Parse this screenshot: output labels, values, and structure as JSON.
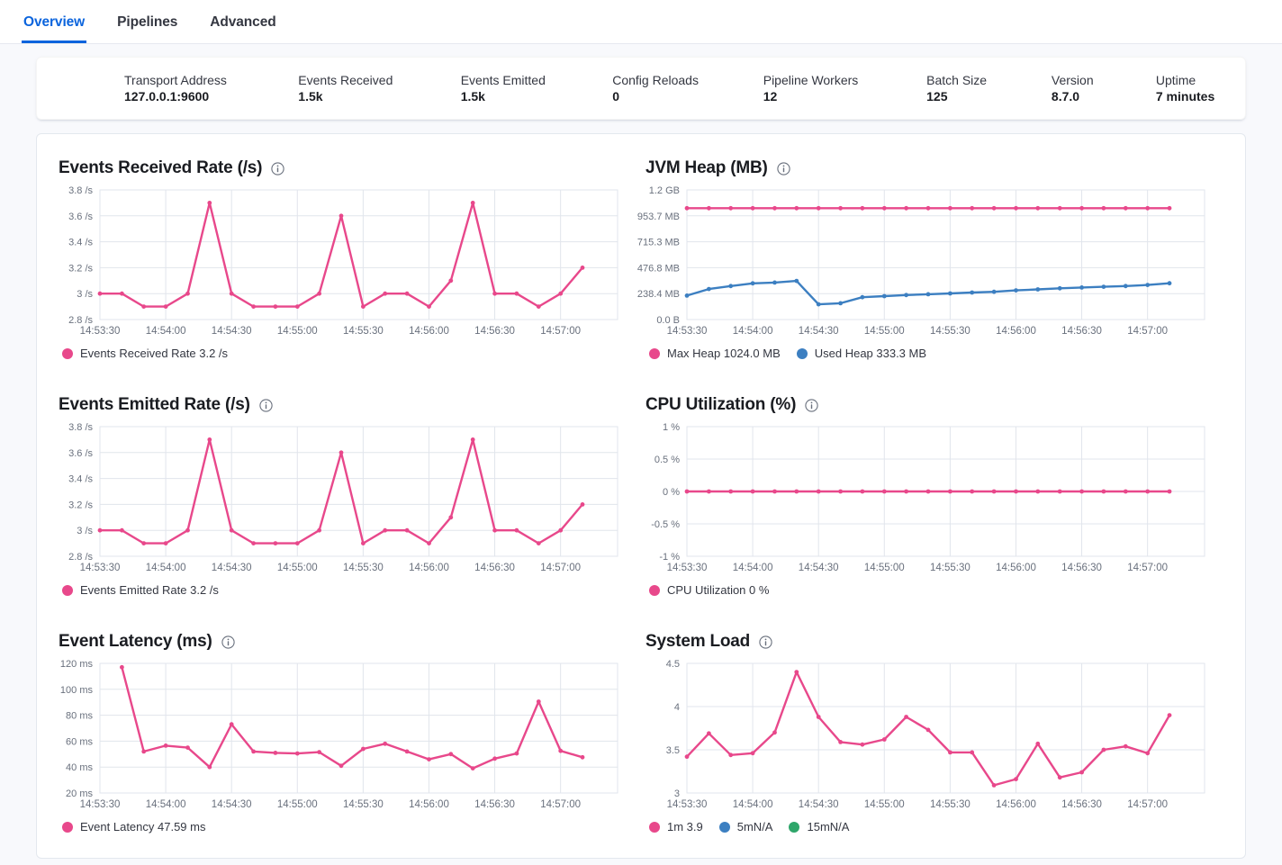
{
  "tabs": {
    "items": [
      {
        "label": "Overview",
        "active": true
      },
      {
        "label": "Pipelines",
        "active": false
      },
      {
        "label": "Advanced",
        "active": false
      }
    ]
  },
  "stats": {
    "items": [
      {
        "label": "Transport Address",
        "value": "127.0.0.1:9600"
      },
      {
        "label": "Events Received",
        "value": "1.5k"
      },
      {
        "label": "Events Emitted",
        "value": "1.5k"
      },
      {
        "label": "Config Reloads",
        "value": "0"
      },
      {
        "label": "Pipeline Workers",
        "value": "12"
      },
      {
        "label": "Batch Size",
        "value": "125"
      },
      {
        "label": "Version",
        "value": "8.7.0"
      },
      {
        "label": "Uptime",
        "value": "7 minutes"
      }
    ]
  },
  "theme": {
    "tab_accent": "#0b64dd",
    "pink": "#e8488b",
    "blue": "#3c7fc1",
    "green": "#2ea66a",
    "grid": "#e1e5ec",
    "tick_text": "#69707d"
  },
  "chart_data": [
    {
      "type": "line",
      "slug": "events-received-rate",
      "title": "Events Received Rate (/s)",
      "ylabel": "/s",
      "ylim": [
        2.8,
        3.8
      ],
      "yticks": [
        {
          "v": 2.8,
          "label": "2.8 /s"
        },
        {
          "v": 3.0,
          "label": "3 /s"
        },
        {
          "v": 3.2,
          "label": "3.2 /s"
        },
        {
          "v": 3.4,
          "label": "3.4 /s"
        },
        {
          "v": 3.6,
          "label": "3.6 /s"
        },
        {
          "v": 3.8,
          "label": "3.8 /s"
        }
      ],
      "xticks": [
        {
          "t": 0,
          "label": "14:53:30"
        },
        {
          "t": 30,
          "label": "14:54:00"
        },
        {
          "t": 60,
          "label": "14:54:30"
        },
        {
          "t": 90,
          "label": "14:55:00"
        },
        {
          "t": 120,
          "label": "14:55:30"
        },
        {
          "t": 150,
          "label": "14:56:00"
        },
        {
          "t": 180,
          "label": "14:56:30"
        },
        {
          "t": 210,
          "label": "14:57:00"
        }
      ],
      "t_domain": 236,
      "series": [
        {
          "name": "Events Received Rate",
          "color": "#e8488b",
          "t0": 0,
          "dt": 10,
          "values": [
            3,
            3,
            2.9,
            2.9,
            3,
            3.7,
            3,
            2.9,
            2.9,
            2.9,
            3,
            3.6,
            2.9,
            3,
            3,
            2.9,
            3.1,
            3.7,
            3,
            3,
            2.9,
            3,
            3.2
          ]
        }
      ],
      "legend": [
        {
          "color": "#e8488b",
          "label": "Events Received Rate 3.2 /s"
        }
      ]
    },
    {
      "type": "line",
      "slug": "jvm-heap",
      "title": "JVM Heap (MB)",
      "ylabel": "MB",
      "ylim": [
        0,
        1192.1
      ],
      "yticks": [
        {
          "v": 0,
          "label": "0.0 B"
        },
        {
          "v": 238.4,
          "label": "238.4 MB"
        },
        {
          "v": 476.8,
          "label": "476.8 MB"
        },
        {
          "v": 715.3,
          "label": "715.3 MB"
        },
        {
          "v": 953.7,
          "label": "953.7 MB"
        },
        {
          "v": 1192.1,
          "label": "1.2 GB"
        }
      ],
      "xticks": [
        {
          "t": 0,
          "label": "14:53:30"
        },
        {
          "t": 30,
          "label": "14:54:00"
        },
        {
          "t": 60,
          "label": "14:54:30"
        },
        {
          "t": 90,
          "label": "14:55:00"
        },
        {
          "t": 120,
          "label": "14:55:30"
        },
        {
          "t": 150,
          "label": "14:56:00"
        },
        {
          "t": 180,
          "label": "14:56:30"
        },
        {
          "t": 210,
          "label": "14:57:00"
        }
      ],
      "t_domain": 236,
      "series": [
        {
          "name": "Max Heap",
          "color": "#e8488b",
          "t0": 0,
          "dt": 10,
          "values": [
            1024,
            1024,
            1024,
            1024,
            1024,
            1024,
            1024,
            1024,
            1024,
            1024,
            1024,
            1024,
            1024,
            1024,
            1024,
            1024,
            1024,
            1024,
            1024,
            1024,
            1024,
            1024,
            1024
          ]
        },
        {
          "name": "Used Heap",
          "color": "#3c7fc1",
          "t0": 0,
          "dt": 10,
          "values": [
            220,
            281,
            308,
            333,
            340,
            355,
            140,
            150,
            205,
            215,
            225,
            233,
            240,
            248,
            255,
            268,
            277,
            287,
            295,
            301,
            308,
            318,
            333.3
          ]
        }
      ],
      "legend": [
        {
          "color": "#e8488b",
          "label": "Max Heap 1024.0 MB"
        },
        {
          "color": "#3c7fc1",
          "label": "Used Heap 333.3 MB"
        }
      ]
    },
    {
      "type": "line",
      "slug": "events-emitted-rate",
      "title": "Events Emitted Rate (/s)",
      "ylabel": "/s",
      "ylim": [
        2.8,
        3.8
      ],
      "yticks": [
        {
          "v": 2.8,
          "label": "2.8 /s"
        },
        {
          "v": 3.0,
          "label": "3 /s"
        },
        {
          "v": 3.2,
          "label": "3.2 /s"
        },
        {
          "v": 3.4,
          "label": "3.4 /s"
        },
        {
          "v": 3.6,
          "label": "3.6 /s"
        },
        {
          "v": 3.8,
          "label": "3.8 /s"
        }
      ],
      "xticks": [
        {
          "t": 0,
          "label": "14:53:30"
        },
        {
          "t": 30,
          "label": "14:54:00"
        },
        {
          "t": 60,
          "label": "14:54:30"
        },
        {
          "t": 90,
          "label": "14:55:00"
        },
        {
          "t": 120,
          "label": "14:55:30"
        },
        {
          "t": 150,
          "label": "14:56:00"
        },
        {
          "t": 180,
          "label": "14:56:30"
        },
        {
          "t": 210,
          "label": "14:57:00"
        }
      ],
      "t_domain": 236,
      "series": [
        {
          "name": "Events Emitted Rate",
          "color": "#e8488b",
          "t0": 0,
          "dt": 10,
          "values": [
            3,
            3,
            2.9,
            2.9,
            3,
            3.7,
            3,
            2.9,
            2.9,
            2.9,
            3,
            3.6,
            2.9,
            3,
            3,
            2.9,
            3.1,
            3.7,
            3,
            3,
            2.9,
            3,
            3.2
          ]
        }
      ],
      "legend": [
        {
          "color": "#e8488b",
          "label": "Events Emitted Rate 3.2 /s"
        }
      ]
    },
    {
      "type": "line",
      "slug": "cpu-utilization",
      "title": "CPU Utilization (%)",
      "ylabel": "%",
      "ylim": [
        -1,
        1
      ],
      "yticks": [
        {
          "v": -1,
          "label": "-1 %"
        },
        {
          "v": -0.5,
          "label": "-0.5 %"
        },
        {
          "v": 0,
          "label": "0 %"
        },
        {
          "v": 0.5,
          "label": "0.5 %"
        },
        {
          "v": 1,
          "label": "1 %"
        }
      ],
      "xticks": [
        {
          "t": 0,
          "label": "14:53:30"
        },
        {
          "t": 30,
          "label": "14:54:00"
        },
        {
          "t": 60,
          "label": "14:54:30"
        },
        {
          "t": 90,
          "label": "14:55:00"
        },
        {
          "t": 120,
          "label": "14:55:30"
        },
        {
          "t": 150,
          "label": "14:56:00"
        },
        {
          "t": 180,
          "label": "14:56:30"
        },
        {
          "t": 210,
          "label": "14:57:00"
        }
      ],
      "t_domain": 236,
      "series": [
        {
          "name": "CPU Utilization",
          "color": "#e8488b",
          "t0": 0,
          "dt": 10,
          "values": [
            0,
            0,
            0,
            0,
            0,
            0,
            0,
            0,
            0,
            0,
            0,
            0,
            0,
            0,
            0,
            0,
            0,
            0,
            0,
            0,
            0,
            0,
            0
          ]
        }
      ],
      "legend": [
        {
          "color": "#e8488b",
          "label": "CPU Utilization 0 %"
        }
      ]
    },
    {
      "type": "line",
      "slug": "event-latency",
      "title": "Event Latency (ms)",
      "ylabel": "ms",
      "ylim": [
        20,
        120
      ],
      "yticks": [
        {
          "v": 20,
          "label": "20 ms"
        },
        {
          "v": 40,
          "label": "40 ms"
        },
        {
          "v": 60,
          "label": "60 ms"
        },
        {
          "v": 80,
          "label": "80 ms"
        },
        {
          "v": 100,
          "label": "100 ms"
        },
        {
          "v": 120,
          "label": "120 ms"
        }
      ],
      "xticks": [
        {
          "t": 0,
          "label": "14:53:30"
        },
        {
          "t": 30,
          "label": "14:54:00"
        },
        {
          "t": 60,
          "label": "14:54:30"
        },
        {
          "t": 90,
          "label": "14:55:00"
        },
        {
          "t": 120,
          "label": "14:55:30"
        },
        {
          "t": 150,
          "label": "14:56:00"
        },
        {
          "t": 180,
          "label": "14:56:30"
        },
        {
          "t": 210,
          "label": "14:57:00"
        }
      ],
      "t_domain": 236,
      "series": [
        {
          "name": "Event Latency",
          "color": "#e8488b",
          "t0": 10,
          "dt": 10,
          "values": [
            117,
            52,
            56.5,
            55,
            40,
            73,
            52,
            51,
            50.5,
            51.5,
            41,
            54,
            58,
            52,
            46,
            50,
            39,
            46.5,
            50.5,
            90.5,
            52.5,
            47.59
          ]
        }
      ],
      "legend": [
        {
          "color": "#e8488b",
          "label": "Event Latency 47.59 ms"
        }
      ]
    },
    {
      "type": "line",
      "slug": "system-load",
      "title": "System Load",
      "ylabel": "",
      "ylim": [
        3,
        4.5
      ],
      "yticks": [
        {
          "v": 3,
          "label": "3"
        },
        {
          "v": 3.5,
          "label": "3.5"
        },
        {
          "v": 4,
          "label": "4"
        },
        {
          "v": 4.5,
          "label": "4.5"
        }
      ],
      "xticks": [
        {
          "t": 0,
          "label": "14:53:30"
        },
        {
          "t": 30,
          "label": "14:54:00"
        },
        {
          "t": 60,
          "label": "14:54:30"
        },
        {
          "t": 90,
          "label": "14:55:00"
        },
        {
          "t": 120,
          "label": "14:55:30"
        },
        {
          "t": 150,
          "label": "14:56:00"
        },
        {
          "t": 180,
          "label": "14:56:30"
        },
        {
          "t": 210,
          "label": "14:57:00"
        }
      ],
      "t_domain": 236,
      "series": [
        {
          "name": "1m",
          "color": "#e8488b",
          "t0": 0,
          "dt": 10,
          "values": [
            3.42,
            3.69,
            3.44,
            3.46,
            3.7,
            4.4,
            3.88,
            3.59,
            3.56,
            3.62,
            3.88,
            3.73,
            3.47,
            3.47,
            3.09,
            3.16,
            3.57,
            3.18,
            3.24,
            3.5,
            3.54,
            3.46,
            3.9
          ]
        }
      ],
      "legend": [
        {
          "color": "#e8488b",
          "label": "1m 3.9"
        },
        {
          "color": "#3c7fc1",
          "label": "5mN/A"
        },
        {
          "color": "#2ea66a",
          "label": "15mN/A"
        }
      ]
    }
  ]
}
